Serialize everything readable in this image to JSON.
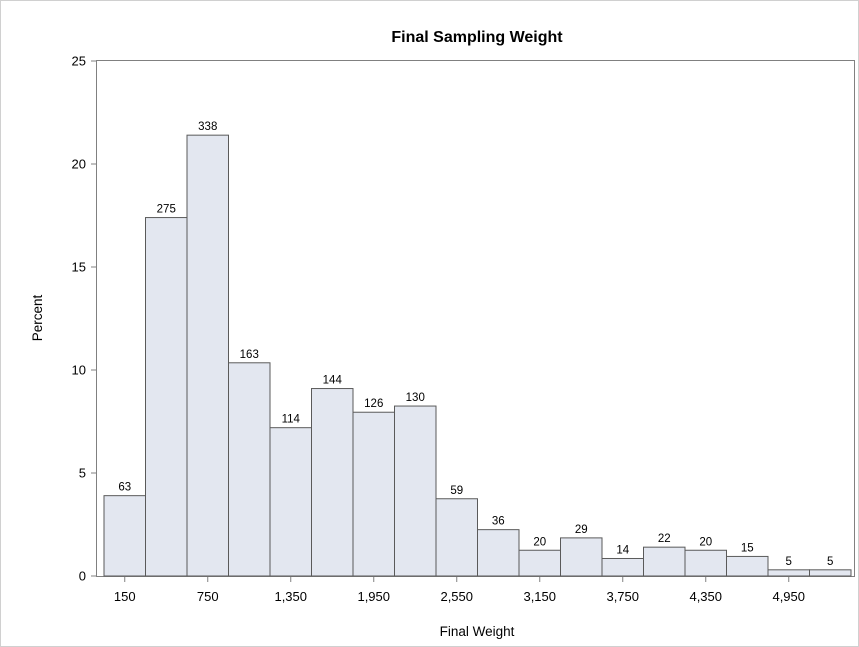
{
  "chart_data": {
    "type": "bar",
    "title": "Final Sampling Weight",
    "xlabel": "Final Weight",
    "ylabel": "Percent",
    "ylim": [
      0,
      25
    ],
    "yticks": [
      0,
      5,
      10,
      15,
      20,
      25
    ],
    "bin_width": 300,
    "bin_start": 0,
    "x_range": [
      0,
      5400
    ],
    "xticks": [
      150,
      750,
      1350,
      1950,
      2550,
      3150,
      3750,
      4350,
      4950
    ],
    "xtick_labels": [
      "150",
      "750",
      "1,350",
      "1,950",
      "2,550",
      "3,150",
      "3,750",
      "4,350",
      "4,950"
    ],
    "bin_midpoints": [
      150,
      450,
      750,
      1050,
      1350,
      1650,
      1950,
      2250,
      2550,
      2850,
      3150,
      3450,
      3750,
      4050,
      4350,
      4650,
      4950,
      5250
    ],
    "values": [
      3.9,
      17.4,
      21.4,
      10.35,
      7.2,
      9.1,
      7.95,
      8.25,
      3.75,
      2.25,
      1.25,
      1.85,
      0.85,
      1.4,
      1.25,
      0.95,
      0.3,
      0.3
    ],
    "counts": [
      "63",
      "275",
      "338",
      "163",
      "114",
      "144",
      "126",
      "130",
      "59",
      "36",
      "20",
      "29",
      "14",
      "22",
      "20",
      "15",
      "5",
      "5"
    ],
    "grid": false,
    "legend": "none"
  }
}
